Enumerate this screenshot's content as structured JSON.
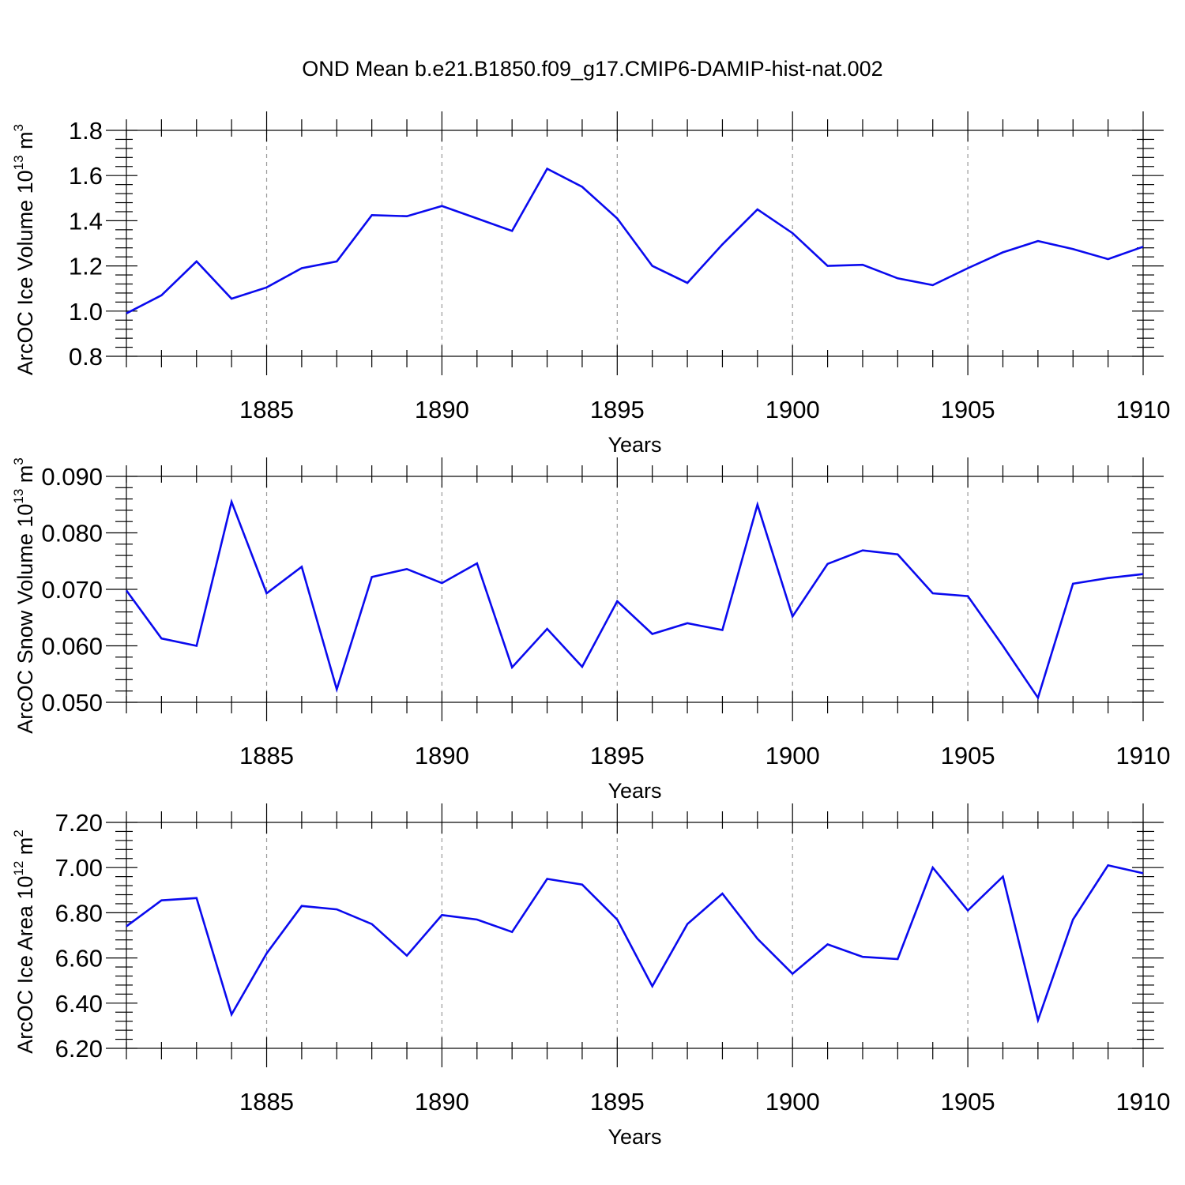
{
  "title": "OND Mean b.e21.B1850.f09_g17.CMIP6-DAMIP-hist-nat.002",
  "colors": {
    "series": "#0a0aee",
    "grid": "#9a9a9a",
    "axis": "#000000"
  },
  "chart_data": [
    {
      "type": "line",
      "ylabel": "ArcOC Ice Volume 10",
      "ylabel_exponent": "13",
      "ylabel_unit": "m",
      "ylabel_unit_exponent": "3",
      "xlabel": "Years",
      "xlim": [
        1881,
        1910
      ],
      "ylim": [
        0.8,
        1.8
      ],
      "yticks": [
        "0.8",
        "1.0",
        "1.2",
        "1.4",
        "1.6",
        "1.8"
      ],
      "xticks": [
        "1885",
        "1890",
        "1895",
        "1900",
        "1905",
        "1910"
      ],
      "grid": "vertical dashed at major x ticks",
      "x": [
        1881,
        1882,
        1883,
        1884,
        1885,
        1886,
        1887,
        1888,
        1889,
        1890,
        1891,
        1892,
        1893,
        1894,
        1895,
        1896,
        1897,
        1898,
        1899,
        1900,
        1901,
        1902,
        1903,
        1904,
        1905,
        1906,
        1907,
        1908,
        1909,
        1910
      ],
      "values": [
        0.99,
        1.07,
        1.22,
        1.055,
        1.105,
        1.19,
        1.22,
        1.425,
        1.42,
        1.465,
        1.41,
        1.355,
        1.63,
        1.55,
        1.41,
        1.2,
        1.125,
        1.295,
        1.45,
        1.345,
        1.2,
        1.205,
        1.145,
        1.115,
        1.19,
        1.26,
        1.31,
        1.275,
        1.23,
        1.285
      ]
    },
    {
      "type": "line",
      "ylabel": "ArcOC Snow Volume 10",
      "ylabel_exponent": "13",
      "ylabel_unit": "m",
      "ylabel_unit_exponent": "3",
      "xlabel": "Years",
      "xlim": [
        1881,
        1910
      ],
      "ylim": [
        0.05,
        0.09
      ],
      "yticks": [
        "0.050",
        "0.060",
        "0.070",
        "0.080",
        "0.090"
      ],
      "xticks": [
        "1885",
        "1890",
        "1895",
        "1900",
        "1905",
        "1910"
      ],
      "grid": "vertical dashed at major x ticks",
      "x": [
        1881,
        1882,
        1883,
        1884,
        1885,
        1886,
        1887,
        1888,
        1889,
        1890,
        1891,
        1892,
        1893,
        1894,
        1895,
        1896,
        1897,
        1898,
        1899,
        1900,
        1901,
        1902,
        1903,
        1904,
        1905,
        1906,
        1907,
        1908,
        1909,
        1910
      ],
      "values": [
        0.0698,
        0.0613,
        0.06,
        0.0855,
        0.0693,
        0.074,
        0.0523,
        0.0722,
        0.0736,
        0.0711,
        0.0746,
        0.0562,
        0.063,
        0.0563,
        0.0679,
        0.0621,
        0.064,
        0.0628,
        0.085,
        0.0652,
        0.0745,
        0.0769,
        0.0762,
        0.0693,
        0.0688,
        0.06,
        0.0508,
        0.071,
        0.072,
        0.0727
      ]
    },
    {
      "type": "line",
      "ylabel": "ArcOC Ice Area 10",
      "ylabel_exponent": "12",
      "ylabel_unit": "m",
      "ylabel_unit_exponent": "2",
      "xlabel": "Years",
      "xlim": [
        1881,
        1910
      ],
      "ylim": [
        6.2,
        7.2
      ],
      "yticks": [
        "6.20",
        "6.40",
        "6.60",
        "6.80",
        "7.00",
        "7.20"
      ],
      "xticks": [
        "1885",
        "1890",
        "1895",
        "1900",
        "1905",
        "1910"
      ],
      "grid": "vertical dashed at major x ticks",
      "x": [
        1881,
        1882,
        1883,
        1884,
        1885,
        1886,
        1887,
        1888,
        1889,
        1890,
        1891,
        1892,
        1893,
        1894,
        1895,
        1896,
        1897,
        1898,
        1899,
        1900,
        1901,
        1902,
        1903,
        1904,
        1905,
        1906,
        1907,
        1908,
        1909,
        1910
      ],
      "values": [
        6.74,
        6.855,
        6.865,
        6.35,
        6.62,
        6.83,
        6.815,
        6.75,
        6.61,
        6.79,
        6.77,
        6.715,
        6.95,
        6.925,
        6.77,
        6.475,
        6.75,
        6.885,
        6.685,
        6.53,
        6.66,
        6.605,
        6.595,
        7.0,
        6.81,
        6.96,
        6.325,
        6.77,
        7.01,
        6.975
      ]
    }
  ]
}
